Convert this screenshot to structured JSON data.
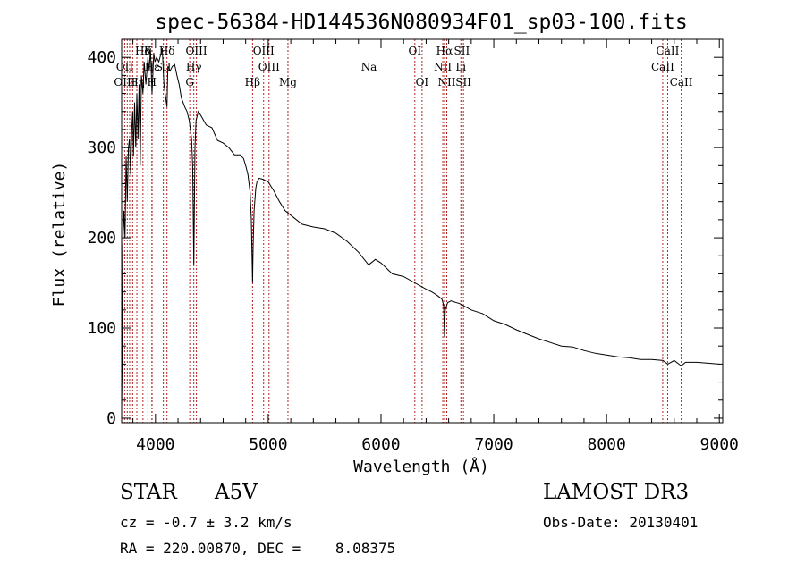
{
  "chart_data": {
    "type": "line",
    "title": "spec-56384-HD144536N080934F01_sp03-100.fits",
    "xlabel": "Wavelength (Å)",
    "ylabel": "Flux (relative)",
    "xlim": [
      3700,
      9030
    ],
    "ylim": [
      -5,
      420
    ],
    "xticks": [
      4000,
      5000,
      6000,
      7000,
      8000,
      9000
    ],
    "yticks": [
      0,
      100,
      200,
      300,
      400
    ],
    "series": [
      {
        "name": "spectrum",
        "x": [
          3700,
          3705,
          3710,
          3720,
          3730,
          3740,
          3750,
          3760,
          3770,
          3780,
          3790,
          3798,
          3805,
          3815,
          3825,
          3835,
          3845,
          3855,
          3865,
          3875,
          3889,
          3900,
          3915,
          3933,
          3945,
          3955,
          3970,
          3985,
          3995,
          4010,
          4030,
          4060,
          4075,
          4102,
          4110,
          4130,
          4150,
          4170,
          4190,
          4210,
          4230,
          4260,
          4280,
          4300,
          4320,
          4330,
          4340,
          4350,
          4360,
          4380,
          4400,
          4450,
          4500,
          4550,
          4600,
          4650,
          4700,
          4750,
          4780,
          4800,
          4820,
          4840,
          4850,
          4855,
          4861,
          4866,
          4875,
          4890,
          4900,
          4920,
          4950,
          5000,
          5050,
          5100,
          5150,
          5200,
          5300,
          5400,
          5500,
          5600,
          5700,
          5800,
          5890,
          5950,
          6000,
          6100,
          6200,
          6300,
          6400,
          6450,
          6500,
          6540,
          6555,
          6563,
          6570,
          6590,
          6620,
          6700,
          6800,
          6900,
          7000,
          7100,
          7200,
          7300,
          7400,
          7500,
          7600,
          7700,
          7800,
          7900,
          8000,
          8100,
          8200,
          8300,
          8400,
          8500,
          8542,
          8600,
          8662,
          8700,
          8800,
          8900,
          9000
        ],
        "values": [
          10,
          60,
          190,
          230,
          200,
          290,
          240,
          300,
          310,
          270,
          320,
          340,
          290,
          350,
          300,
          360,
          310,
          370,
          280,
          380,
          360,
          395,
          370,
          400,
          385,
          410,
          360,
          405,
          395,
          400,
          395,
          410,
          370,
          345,
          390,
          385,
          390,
          392,
          380,
          370,
          355,
          345,
          340,
          330,
          310,
          280,
          170,
          300,
          330,
          340,
          336,
          325,
          322,
          308,
          305,
          300,
          292,
          292,
          288,
          280,
          270,
          250,
          220,
          190,
          150,
          190,
          230,
          255,
          262,
          266,
          265,
          262,
          252,
          240,
          230,
          225,
          215,
          212,
          210,
          205,
          196,
          184,
          170,
          176,
          172,
          160,
          157,
          150,
          143,
          140,
          136,
          132,
          125,
          90,
          120,
          128,
          130,
          127,
          120,
          116,
          108,
          104,
          98,
          93,
          88,
          84,
          80,
          79,
          75,
          72,
          70,
          68,
          67,
          65,
          65,
          64,
          60,
          64,
          58,
          62,
          62,
          61,
          60
        ]
      }
    ],
    "lines": {
      "top": [
        {
          "label": "Hδ",
          "wl": 3889,
          "row": 0
        },
        {
          "label": "K",
          "wl": 3933,
          "row": 0
        },
        {
          "label": "Hδ",
          "wl": 4102,
          "row": 0
        },
        {
          "label": "OIII",
          "wl": 4363,
          "row": 0
        },
        {
          "label": "OIII",
          "wl": 4959,
          "row": 0
        },
        {
          "label": "OI",
          "wl": 6300,
          "row": 0
        },
        {
          "label": "Hα",
          "wl": 6563,
          "row": 0
        },
        {
          "label": "SII",
          "wl": 6717,
          "row": 0
        },
        {
          "label": "CaII",
          "wl": 8542,
          "row": 0
        },
        {
          "label": "OII",
          "wl": 3727,
          "row": 1
        },
        {
          "label": "Hε",
          "wl": 3970,
          "row": 1
        },
        {
          "label": "SII",
          "wl": 4070,
          "row": 1
        },
        {
          "label": "Hγ",
          "wl": 4340,
          "row": 1
        },
        {
          "label": "OIII",
          "wl": 5007,
          "row": 1
        },
        {
          "label": "Na",
          "wl": 5893,
          "row": 1
        },
        {
          "label": "NII",
          "wl": 6548,
          "row": 1
        },
        {
          "label": "Li",
          "wl": 6708,
          "row": 1
        },
        {
          "label": "CaII",
          "wl": 8498,
          "row": 1
        },
        {
          "label": "OIII",
          "wl": 3727,
          "row": 2
        },
        {
          "label": "Hη",
          "wl": 3835,
          "row": 2
        },
        {
          "label": "H",
          "wl": 3968,
          "row": 2
        },
        {
          "label": "G",
          "wl": 4304,
          "row": 2
        },
        {
          "label": "Hβ",
          "wl": 4861,
          "row": 2
        },
        {
          "label": "Mg",
          "wl": 5175,
          "row": 2
        },
        {
          "label": "OI",
          "wl": 6364,
          "row": 2
        },
        {
          "label": "NII",
          "wl": 6583,
          "row": 2
        },
        {
          "label": "SII",
          "wl": 6731,
          "row": 2
        },
        {
          "label": "CaII",
          "wl": 8662,
          "row": 2
        }
      ],
      "markers": [
        3727,
        3750,
        3771,
        3798,
        3835,
        3889,
        3933,
        3968,
        3970,
        4070,
        4102,
        4304,
        4340,
        4363,
        4861,
        4959,
        5007,
        5175,
        5893,
        6300,
        6364,
        6548,
        6563,
        6583,
        6708,
        6717,
        6731,
        8498,
        8542,
        8662
      ]
    }
  },
  "info": {
    "object_class": "STAR",
    "subclass": "A5V",
    "survey": "LAMOST DR3",
    "redshift": "cz = -0.7 ± 3.2 km/s",
    "obs_date": "Obs-Date: 20130401",
    "coords": "RA = 220.00870, DEC =    8.08375"
  },
  "colors": {
    "axis": "#000000",
    "spectrum": "#000000",
    "marker": "#b22222"
  }
}
